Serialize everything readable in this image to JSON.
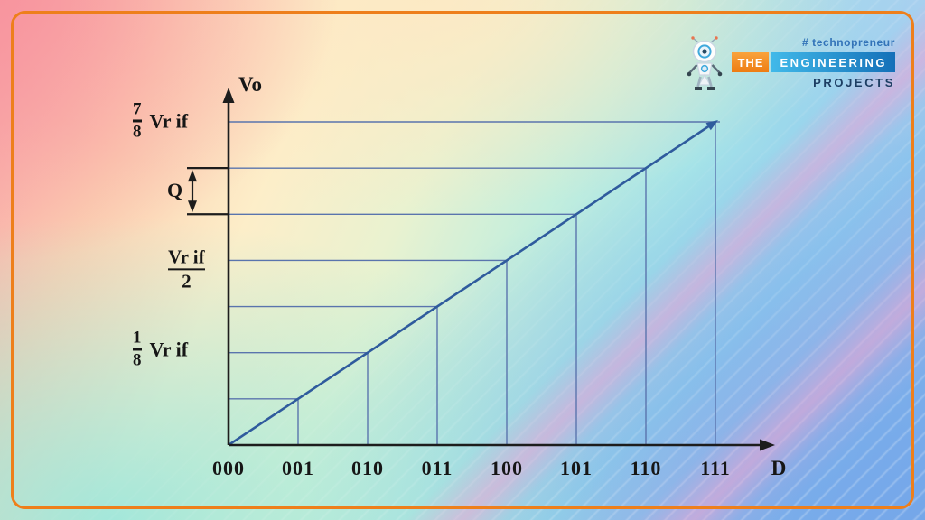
{
  "frame": {
    "border_color": "#ee7f1b"
  },
  "logo": {
    "hashtag": "# technopreneur",
    "word_the": "THE",
    "word_engineering": "ENGINEERING",
    "word_projects": "PROJECTS",
    "colors": {
      "hashtag_text": "#3273b8",
      "the_box": "#ee7c12",
      "engineering_box_left": "#41b9e9",
      "engineering_box_right": "#1470b8",
      "projects_text": "#1d3e63"
    }
  },
  "chart_data": {
    "type": "line",
    "title": "",
    "xlabel": "D",
    "ylabel": "Vo",
    "x_categories": [
      "000",
      "001",
      "010",
      "011",
      "100",
      "101",
      "110",
      "111"
    ],
    "x_values": [
      0,
      1,
      2,
      3,
      4,
      5,
      6,
      7
    ],
    "y_unit": "Vr if",
    "y_axis_range_eighths": [
      0,
      8
    ],
    "series": [
      {
        "name": "ideal-dac-transfer-line",
        "x_codes": [
          0,
          1,
          2,
          3,
          4,
          5,
          6,
          7
        ],
        "y_eighths_of_Vrif": [
          0,
          1,
          2,
          3,
          4,
          5,
          6,
          7
        ]
      }
    ],
    "grid_vertical_at_codes": [
      1,
      2,
      3,
      4,
      5,
      6,
      7
    ],
    "grid_horizontal_at_eighths": [
      1,
      2,
      3,
      4,
      5,
      6,
      7
    ],
    "y_labels": [
      {
        "numerator": "7",
        "denominator": "8",
        "suffix": "Vr if",
        "at_eighths": 7
      },
      {
        "text": "Q",
        "between_eighths": [
          5,
          6
        ]
      },
      {
        "numerator": "Vr if",
        "denominator": "2",
        "at_eighths": 4
      },
      {
        "numerator": "1",
        "denominator": "8",
        "suffix": "Vr if",
        "at_eighths": 1
      }
    ],
    "legend": "none",
    "colors": {
      "axis": "#1d1d1d",
      "grid_line": "#5a74ad",
      "diagonal_line": "#2f5b9d",
      "label_text": "#161616"
    }
  }
}
